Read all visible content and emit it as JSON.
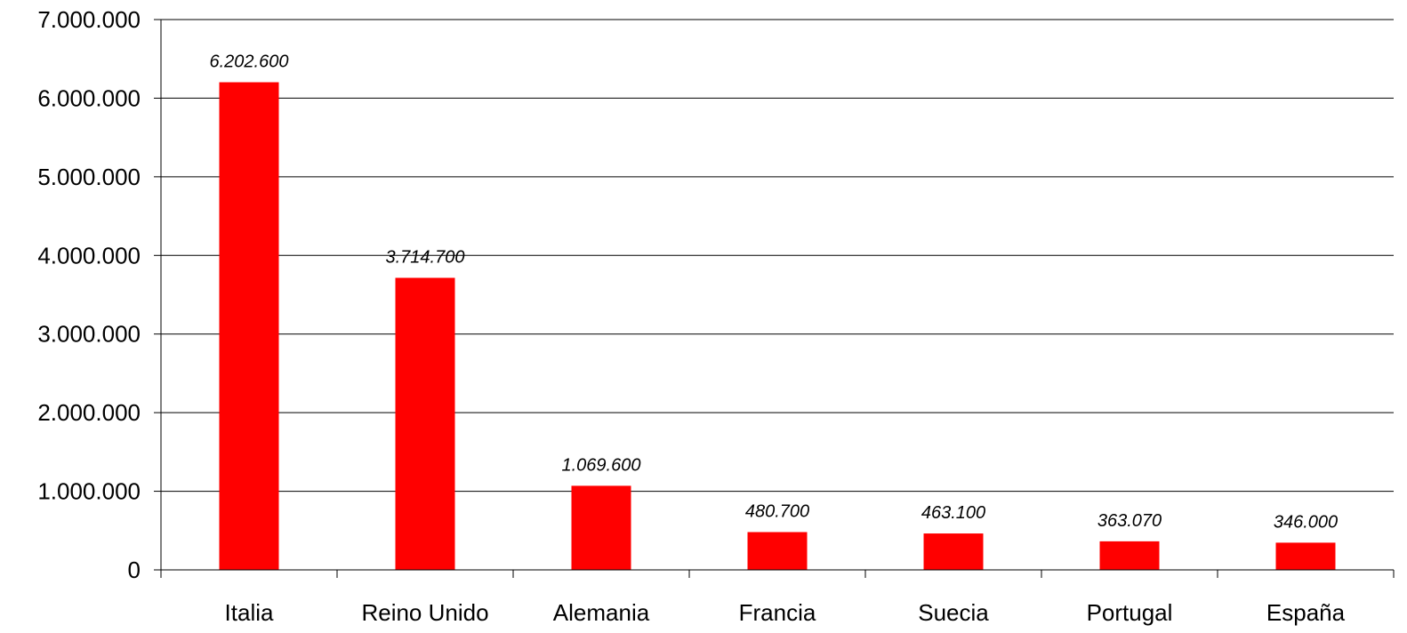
{
  "chart_data": {
    "type": "bar",
    "title": "",
    "xlabel": "",
    "ylabel": "",
    "categories": [
      "Italia",
      "Reino Unido",
      "Alemania",
      "Francia",
      "Suecia",
      "Portugal",
      "España"
    ],
    "values": [
      6202600,
      3714700,
      1069600,
      480700,
      463100,
      363070,
      346000
    ],
    "data_labels": [
      "6.202.600",
      "3.714.700",
      "1.069.600",
      "480.700",
      "463.100",
      "363.070",
      "346.000"
    ],
    "ylim": [
      0,
      7000000
    ],
    "yticks": [
      0,
      1000000,
      2000000,
      3000000,
      4000000,
      5000000,
      6000000,
      7000000
    ],
    "ytick_labels": [
      "0",
      "1.000.000",
      "2.000.000",
      "3.000.000",
      "4.000.000",
      "5.000.000",
      "6.000.000",
      "7.000.000"
    ],
    "grid": true,
    "legend": "none",
    "colors": {
      "bar": "#ff0000",
      "grid": "#000000",
      "axis": "#000000"
    }
  }
}
